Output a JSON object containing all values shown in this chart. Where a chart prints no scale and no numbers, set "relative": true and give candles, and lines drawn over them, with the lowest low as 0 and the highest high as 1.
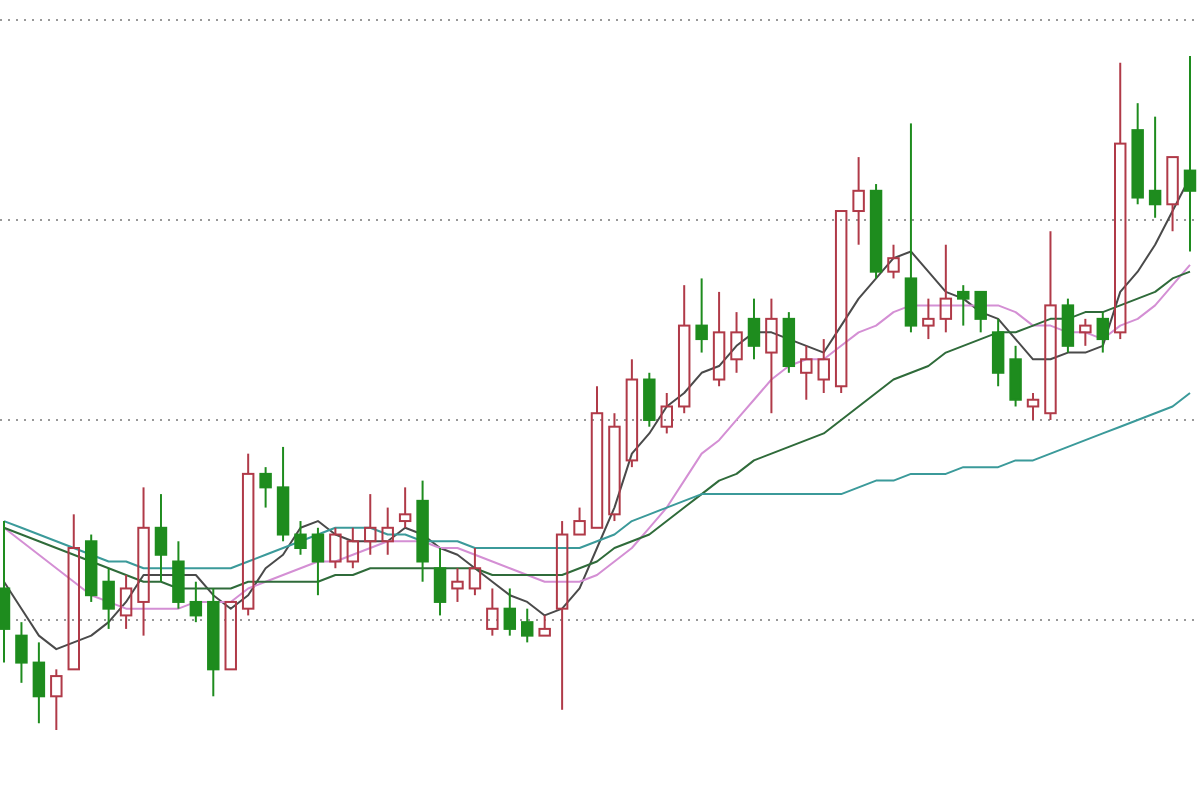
{
  "chart_data": {
    "type": "candlestick",
    "relative": true,
    "grid": true,
    "categories": [
      null,
      null,
      null,
      null,
      null,
      null,
      null,
      null,
      null,
      null,
      null,
      null,
      null,
      null,
      null,
      null,
      null,
      null,
      null,
      null,
      null,
      null,
      null,
      null,
      null,
      null,
      null,
      null,
      null,
      null,
      null,
      null,
      null,
      null,
      null,
      null,
      null,
      null,
      null,
      null,
      null,
      null,
      null,
      null,
      null,
      null,
      null,
      null,
      null,
      null,
      null,
      null,
      null,
      null,
      null,
      null,
      null,
      null,
      null,
      null,
      null,
      null,
      null,
      null,
      null,
      null,
      null,
      null,
      null
    ],
    "ohlc": [
      [
        0.21,
        0.31,
        0.1,
        0.15
      ],
      [
        0.14,
        0.16,
        0.07,
        0.1
      ],
      [
        0.1,
        0.13,
        0.01,
        0.05
      ],
      [
        0.05,
        0.09,
        0,
        0.08
      ],
      [
        0.09,
        0.32,
        0.09,
        0.27
      ],
      [
        0.28,
        0.29,
        0.19,
        0.2
      ],
      [
        0.22,
        0.24,
        0.15,
        0.18
      ],
      [
        0.17,
        0.23,
        0.15,
        0.21
      ],
      [
        0.19,
        0.36,
        0.14,
        0.3
      ],
      [
        0.3,
        0.35,
        0.22,
        0.26
      ],
      [
        0.25,
        0.28,
        0.18,
        0.19
      ],
      [
        0.19,
        0.22,
        0.16,
        0.17
      ],
      [
        0.19,
        0.21,
        0.05,
        0.09
      ],
      [
        0.09,
        0.19,
        0.09,
        0.19
      ],
      [
        0.18,
        0.41,
        0.17,
        0.38
      ],
      [
        0.38,
        0.39,
        0.33,
        0.36
      ],
      [
        0.36,
        0.42,
        0.28,
        0.29
      ],
      [
        0.29,
        0.31,
        0.26,
        0.27
      ],
      [
        0.29,
        0.3,
        0.2,
        0.25
      ],
      [
        0.25,
        0.3,
        0.24,
        0.29
      ],
      [
        0.25,
        0.3,
        0.24,
        0.28
      ],
      [
        0.28,
        0.35,
        0.26,
        0.3
      ],
      [
        0.28,
        0.33,
        0.26,
        0.3
      ],
      [
        0.31,
        0.36,
        0.3,
        0.32
      ],
      [
        0.34,
        0.37,
        0.22,
        0.25
      ],
      [
        0.24,
        0.27,
        0.17,
        0.19
      ],
      [
        0.21,
        0.24,
        0.19,
        0.22
      ],
      [
        0.21,
        0.27,
        0.2,
        0.24
      ],
      [
        0.15,
        0.21,
        0.14,
        0.18
      ],
      [
        0.18,
        0.21,
        0.14,
        0.15
      ],
      [
        0.16,
        0.18,
        0.13,
        0.14
      ],
      [
        0.14,
        0.17,
        0.14,
        0.15
      ],
      [
        0.18,
        0.31,
        0.03,
        0.29
      ],
      [
        0.29,
        0.33,
        0.29,
        0.31
      ],
      [
        0.3,
        0.51,
        0.3,
        0.47
      ],
      [
        0.32,
        0.47,
        0.31,
        0.45
      ],
      [
        0.4,
        0.55,
        0.39,
        0.52
      ],
      [
        0.52,
        0.53,
        0.45,
        0.46
      ],
      [
        0.45,
        0.5,
        0.44,
        0.48
      ],
      [
        0.48,
        0.66,
        0.47,
        0.6
      ],
      [
        0.6,
        0.67,
        0.56,
        0.58
      ],
      [
        0.52,
        0.65,
        0.51,
        0.59
      ],
      [
        0.55,
        0.62,
        0.53,
        0.59
      ],
      [
        0.61,
        0.64,
        0.55,
        0.57
      ],
      [
        0.56,
        0.64,
        0.47,
        0.61
      ],
      [
        0.61,
        0.62,
        0.53,
        0.54
      ],
      [
        0.53,
        0.57,
        0.49,
        0.55
      ],
      [
        0.52,
        0.58,
        0.5,
        0.55
      ],
      [
        0.51,
        0.77,
        0.5,
        0.77
      ],
      [
        0.77,
        0.85,
        0.72,
        0.8
      ],
      [
        0.8,
        0.81,
        0.67,
        0.68
      ],
      [
        0.68,
        0.72,
        0.67,
        0.7
      ],
      [
        0.67,
        0.9,
        0.59,
        0.6
      ],
      [
        0.6,
        0.64,
        0.58,
        0.61
      ],
      [
        0.61,
        0.72,
        0.59,
        0.64
      ],
      [
        0.65,
        0.66,
        0.6,
        0.64
      ],
      [
        0.65,
        0.65,
        0.59,
        0.61
      ],
      [
        0.59,
        0.61,
        0.51,
        0.53
      ],
      [
        0.55,
        0.57,
        0.48,
        0.49
      ],
      [
        0.48,
        0.5,
        0.46,
        0.49
      ],
      [
        0.47,
        0.74,
        0.46,
        0.63
      ],
      [
        0.63,
        0.64,
        0.56,
        0.57
      ],
      [
        0.59,
        0.61,
        0.57,
        0.6
      ],
      [
        0.61,
        0.62,
        0.56,
        0.58
      ],
      [
        0.59,
        0.99,
        0.58,
        0.87
      ],
      [
        0.89,
        0.93,
        0.78,
        0.79
      ],
      [
        0.8,
        0.91,
        0.76,
        0.78
      ],
      [
        0.78,
        0.85,
        0.74,
        0.85
      ],
      [
        0.83,
        1,
        0.71,
        0.8
      ]
    ],
    "colors": [
      "#1e8c1e",
      "#1e8c1e",
      "#1e8c1e",
      "#b03a48",
      "#b03a48",
      "#1e8c1e",
      "#1e8c1e",
      "#b03a48",
      "#b03a48",
      "#1e8c1e",
      "#1e8c1e",
      "#1e8c1e",
      "#1e8c1e",
      "#b03a48",
      "#b03a48",
      "#1e8c1e",
      "#1e8c1e",
      "#1e8c1e",
      "#1e8c1e",
      "#b03a48",
      "#b03a48",
      "#b03a48",
      "#b03a48",
      "#b03a48",
      "#1e8c1e",
      "#1e8c1e",
      "#b03a48",
      "#b03a48",
      "#b03a48",
      "#1e8c1e",
      "#1e8c1e",
      "#b03a48",
      "#b03a48",
      "#b03a48",
      "#b03a48",
      "#b03a48",
      "#b03a48",
      "#1e8c1e",
      "#b03a48",
      "#b03a48",
      "#1e8c1e",
      "#b03a48",
      "#b03a48",
      "#1e8c1e",
      "#b03a48",
      "#1e8c1e",
      "#b03a48",
      "#b03a48",
      "#b03a48",
      "#b03a48",
      "#1e8c1e",
      "#b03a48",
      "#1e8c1e",
      "#b03a48",
      "#b03a48",
      "#1e8c1e",
      "#1e8c1e",
      "#1e8c1e",
      "#1e8c1e",
      "#b03a48",
      "#b03a48",
      "#1e8c1e",
      "#b03a48",
      "#1e8c1e",
      "#b03a48",
      "#1e8c1e",
      "#1e8c1e",
      "#b03a48",
      "#1e8c1e"
    ],
    "series": [
      {
        "type": "line",
        "color": "#4a4a4a",
        "values": [
          0.22,
          0.18,
          0.14,
          0.12,
          0.13,
          0.14,
          0.16,
          0.19,
          0.23,
          0.23,
          0.23,
          0.23,
          0.2,
          0.18,
          0.2,
          0.24,
          0.26,
          0.3,
          0.31,
          0.29,
          0.28,
          0.28,
          0.28,
          0.3,
          0.29,
          0.27,
          0.26,
          0.24,
          0.22,
          0.2,
          0.19,
          0.17,
          0.18,
          0.21,
          0.27,
          0.33,
          0.41,
          0.44,
          0.48,
          0.5,
          0.53,
          0.54,
          0.57,
          0.59,
          0.59,
          0.58,
          0.57,
          0.56,
          0.6,
          0.64,
          0.67,
          0.7,
          0.71,
          0.68,
          0.65,
          0.64,
          0.62,
          0.61,
          0.58,
          0.55,
          0.55,
          0.56,
          0.56,
          0.57,
          0.65,
          0.68,
          0.72,
          0.77,
          0.82
        ]
      },
      {
        "type": "line",
        "color": "#d48fd4",
        "values": [
          0.3,
          0.28,
          0.26,
          0.24,
          0.22,
          0.2,
          0.19,
          0.18,
          0.18,
          0.18,
          0.18,
          0.19,
          0.19,
          0.19,
          0.21,
          0.22,
          0.23,
          0.24,
          0.25,
          0.25,
          0.26,
          0.27,
          0.28,
          0.28,
          0.28,
          0.27,
          0.27,
          0.26,
          0.25,
          0.24,
          0.23,
          0.22,
          0.22,
          0.22,
          0.23,
          0.25,
          0.27,
          0.3,
          0.33,
          0.37,
          0.41,
          0.43,
          0.46,
          0.49,
          0.52,
          0.54,
          0.55,
          0.55,
          0.57,
          0.59,
          0.6,
          0.62,
          0.63,
          0.63,
          0.63,
          0.63,
          0.63,
          0.63,
          0.62,
          0.6,
          0.6,
          0.59,
          0.59,
          0.58,
          0.6,
          0.61,
          0.63,
          0.66,
          0.69
        ]
      },
      {
        "type": "line",
        "color": "#2f6b3a",
        "values": [
          0.3,
          0.29,
          0.28,
          0.27,
          0.26,
          0.25,
          0.24,
          0.23,
          0.22,
          0.22,
          0.21,
          0.21,
          0.21,
          0.21,
          0.22,
          0.22,
          0.22,
          0.22,
          0.22,
          0.23,
          0.23,
          0.24,
          0.24,
          0.24,
          0.24,
          0.24,
          0.24,
          0.24,
          0.23,
          0.23,
          0.23,
          0.23,
          0.23,
          0.24,
          0.25,
          0.27,
          0.28,
          0.29,
          0.31,
          0.33,
          0.35,
          0.37,
          0.38,
          0.4,
          0.41,
          0.42,
          0.43,
          0.44,
          0.46,
          0.48,
          0.5,
          0.52,
          0.53,
          0.54,
          0.56,
          0.57,
          0.58,
          0.59,
          0.59,
          0.6,
          0.61,
          0.61,
          0.62,
          0.62,
          0.63,
          0.64,
          0.65,
          0.67,
          0.68
        ]
      },
      {
        "type": "line",
        "color": "#3b9a9a",
        "values": [
          0.31,
          0.3,
          0.29,
          0.28,
          0.27,
          0.26,
          0.25,
          0.25,
          0.24,
          0.24,
          0.24,
          0.24,
          0.24,
          0.24,
          0.25,
          0.26,
          0.27,
          0.28,
          0.29,
          0.3,
          0.3,
          0.3,
          0.29,
          0.29,
          0.28,
          0.28,
          0.28,
          0.27,
          0.27,
          0.27,
          0.27,
          0.27,
          0.27,
          0.27,
          0.28,
          0.29,
          0.31,
          0.32,
          0.33,
          0.34,
          0.35,
          0.35,
          0.35,
          0.35,
          0.35,
          0.35,
          0.35,
          0.35,
          0.35,
          0.36,
          0.37,
          0.37,
          0.38,
          0.38,
          0.38,
          0.39,
          0.39,
          0.39,
          0.4,
          0.4,
          0.41,
          0.42,
          0.43,
          0.44,
          0.45,
          0.46,
          0.47,
          0.48,
          0.5
        ]
      }
    ]
  }
}
